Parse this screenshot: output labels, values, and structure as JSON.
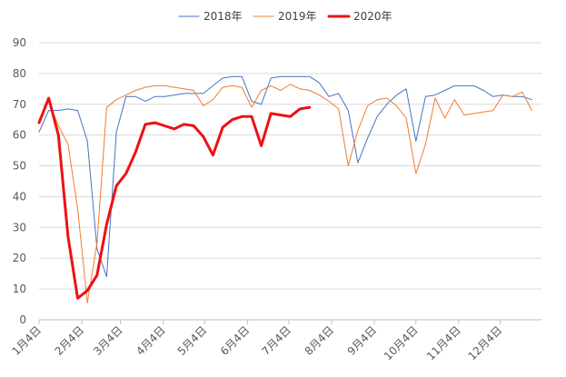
{
  "chart_data": {
    "type": "line",
    "title": "",
    "xlabel": "",
    "ylabel": "",
    "ylim": [
      0,
      90
    ],
    "yticks": [
      0,
      10,
      20,
      30,
      40,
      50,
      60,
      70,
      80,
      90
    ],
    "grid": true,
    "legend_position": "top",
    "x_tick_labels": [
      "1月4日",
      "2月4日",
      "3月4日",
      "4月4日",
      "5月4日",
      "6月4日",
      "7月4日",
      "8月4日",
      "9月4日",
      "10月4日",
      "11月4日",
      "12月4日"
    ],
    "x_tick_weeks": [
      0,
      4.43,
      8.43,
      12.86,
      17.14,
      21.57,
      25.86,
      30.29,
      34.71,
      39,
      43.43,
      47.71
    ],
    "x_max_week": 52,
    "series": [
      {
        "name": "2018年",
        "color": "#4472c4",
        "line_width": 1,
        "values": [
          61,
          68,
          68,
          68.5,
          68,
          58,
          23,
          14,
          61,
          72.5,
          72.5,
          71,
          72.5,
          72.5,
          73,
          73.5,
          73.5,
          73.5,
          76,
          78.5,
          79,
          79,
          71,
          70,
          78.5,
          79,
          79,
          79,
          79,
          77,
          72.5,
          73.5,
          68,
          51,
          59,
          66,
          70,
          73,
          75,
          58,
          72.5,
          73,
          74.5,
          76,
          76,
          76,
          74.5,
          72.5,
          73,
          72.5,
          72.5,
          71.5
        ]
      },
      {
        "name": "2019年",
        "color": "#ed7d31",
        "line_width": 1,
        "values": [
          65,
          71,
          63,
          57,
          36,
          5.5,
          25,
          69,
          71.5,
          73,
          74.5,
          75.5,
          76,
          76,
          75.5,
          75,
          74.5,
          69.5,
          71.5,
          75.5,
          76,
          75.5,
          69,
          74.5,
          76,
          74.5,
          76.5,
          75,
          74.5,
          73,
          71,
          68.5,
          50,
          61.5,
          69.5,
          71.5,
          72,
          69.5,
          65.5,
          47.5,
          57,
          72,
          65.5,
          71.5,
          66.5,
          67,
          67.5,
          68,
          73,
          72.5,
          74,
          68
        ]
      },
      {
        "name": "2020年",
        "color": "#ee1111",
        "line_width": 3,
        "values": [
          64,
          72,
          60,
          27,
          7,
          9.5,
          14.5,
          31,
          43.5,
          47.5,
          54.5,
          63.5,
          64,
          63,
          62,
          63.5,
          63,
          59.5,
          53.5,
          62.5,
          65,
          66,
          66,
          56.5,
          67,
          66.5,
          66,
          68.5,
          69
        ]
      }
    ]
  }
}
